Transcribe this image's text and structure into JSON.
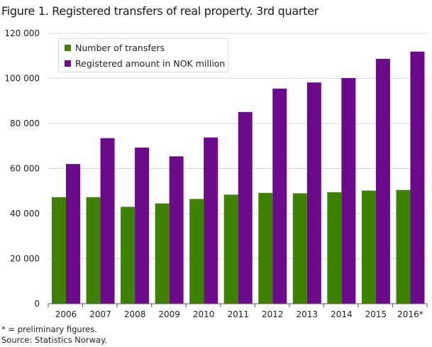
{
  "title": "Figure 1. Registered transfers of real property. 3rd quarter",
  "footnotes": [
    "* = preliminary figures.",
    "Source: Statistics Norway."
  ],
  "colors": {
    "transfers": "#3f8203",
    "amount": "#6b0a8a",
    "grid": "#d9d9d9",
    "axis": "#555555"
  },
  "chart_data": {
    "type": "bar",
    "title": "Figure 1. Registered transfers of real property. 3rd quarter",
    "xlabel": "",
    "ylabel": "",
    "categories": [
      "2006",
      "2007",
      "2008",
      "2009",
      "2010",
      "2011",
      "2012",
      "2013",
      "2014",
      "2015",
      "2016*"
    ],
    "series": [
      {
        "name": "Number of transfers",
        "values": [
          47300,
          47300,
          43000,
          44500,
          46500,
          48400,
          49200,
          49000,
          49500,
          50200,
          50500
        ]
      },
      {
        "name": "Registered amount in NOK million",
        "values": [
          62000,
          73500,
          69300,
          65400,
          73800,
          85100,
          95500,
          98200,
          100200,
          108700,
          111900
        ]
      }
    ],
    "ylim": [
      0,
      120000
    ],
    "yticks": [
      0,
      20000,
      40000,
      60000,
      80000,
      100000,
      120000
    ],
    "ytick_labels": [
      "0",
      "20 000",
      "40 000",
      "60 000",
      "80 000",
      "100 000",
      "120 000"
    ],
    "grid": true,
    "legend_position": "top-left"
  }
}
